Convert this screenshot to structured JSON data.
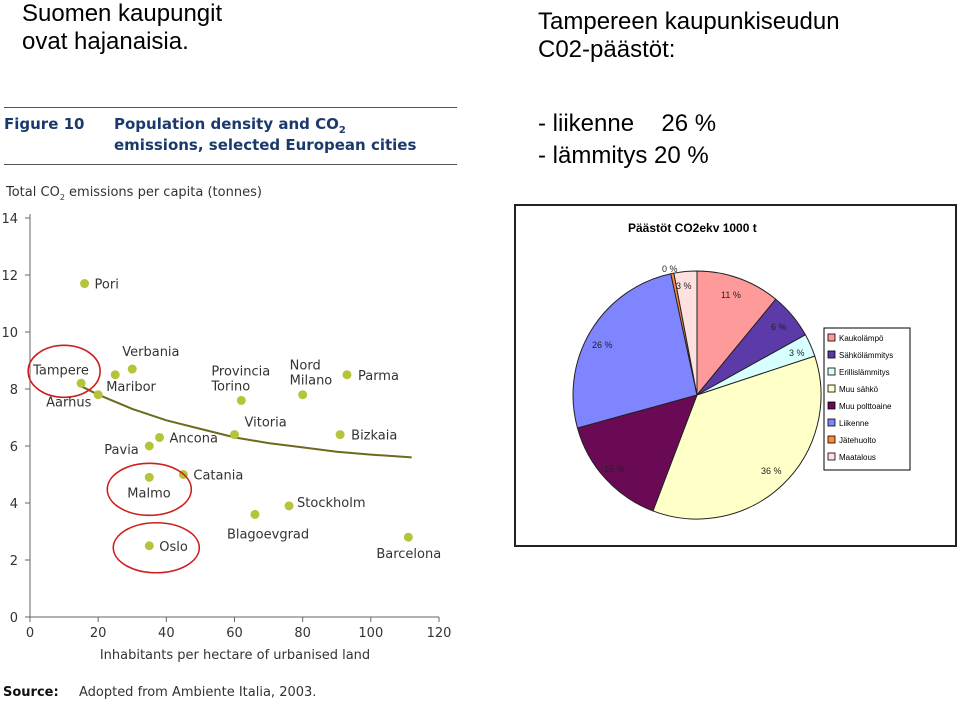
{
  "heading_left": {
    "line1": "Suomen kaupungit",
    "line2": "ovat hajanaisia."
  },
  "heading_right": {
    "line1": "Tampereen kaupunkiseudun",
    "line2": "C02-päästöt:"
  },
  "bullets": [
    {
      "text": "- liikenne",
      "value": "26 %"
    },
    {
      "text": "- lämmitys 20 %"
    }
  ],
  "figure": {
    "label": "Figure 10",
    "title_line1": "Population density and CO",
    "title_sub": "2",
    "title_line2": "emissions, selected European cities"
  },
  "source": {
    "label": "Source:",
    "text": "Adopted from Ambiente Italia, 2003."
  },
  "colors": {
    "dot": "#b5c43a",
    "trend": "#6b6a1e",
    "circle": "#cc1f1f",
    "figure_title": "#1b3a6b"
  },
  "chart_data": [
    {
      "type": "scatter",
      "title": "",
      "ylabel_parts": [
        "Total CO",
        "2",
        " emissions per capita (tonnes)"
      ],
      "xlabel": "Inhabitants per hectare of urbanised land",
      "xlim": [
        0,
        120
      ],
      "ylim": [
        0,
        14
      ],
      "xticks": [
        "0",
        "20",
        "40",
        "60",
        "80",
        "100",
        "120"
      ],
      "yticks": [
        "0",
        "2",
        "4",
        "6",
        "8",
        "10",
        "12",
        "14"
      ],
      "grid": false,
      "points": [
        {
          "label": "Pori",
          "x": 16,
          "y": 11.7
        },
        {
          "label": "Tampere",
          "x": 15,
          "y": 8.2,
          "circled": true
        },
        {
          "label": "Aarhus",
          "x": 20,
          "y": 7.8
        },
        {
          "label": "Verbania",
          "x": 30,
          "y": 8.7
        },
        {
          "label": "Maribor",
          "x": 25,
          "y": 8.5
        },
        {
          "label": "Provincia Torino",
          "x": 62,
          "y": 7.6
        },
        {
          "label": "Nord Milano",
          "x": 80,
          "y": 7.8
        },
        {
          "label": "Parma",
          "x": 93,
          "y": 8.5
        },
        {
          "label": "Vitoria",
          "x": 60,
          "y": 6.4
        },
        {
          "label": "Bizkaia",
          "x": 91,
          "y": 6.4
        },
        {
          "label": "Ancona",
          "x": 38,
          "y": 6.3
        },
        {
          "label": "Pavia",
          "x": 35,
          "y": 6.0
        },
        {
          "label": "Catania",
          "x": 45,
          "y": 5.0
        },
        {
          "label": "Malmo",
          "x": 35,
          "y": 4.9,
          "circled": true
        },
        {
          "label": "Stockholm",
          "x": 76,
          "y": 3.9
        },
        {
          "label": "Blagoevgrad",
          "x": 66,
          "y": 3.6
        },
        {
          "label": "Oslo",
          "x": 35,
          "y": 2.5,
          "circled": true
        },
        {
          "label": "Barcelona",
          "x": 111,
          "y": 2.8
        }
      ],
      "trendline": {
        "x": [
          15,
          20,
          30,
          40,
          50,
          60,
          70,
          80,
          90,
          100,
          112
        ],
        "y": [
          8.1,
          7.8,
          7.3,
          6.9,
          6.6,
          6.3,
          6.1,
          5.95,
          5.8,
          5.7,
          5.6
        ]
      }
    },
    {
      "type": "pie",
      "title": "Päästöt CO2ekv 1000 t",
      "legend_position": "right",
      "slices": [
        {
          "name": "Kaukolämpö",
          "value": 11,
          "label": "11 %",
          "color": "#ff9a9a"
        },
        {
          "name": "Sähkölämmitys",
          "value": 6,
          "label": "6 %",
          "color": "#5c3aa8"
        },
        {
          "name": "Erillislämmitys",
          "value": 3,
          "label": "3 %",
          "color": "#d8ffff"
        },
        {
          "name": "Muu sähkö",
          "value": 36,
          "label": "36 %",
          "color": "#ffffc8"
        },
        {
          "name": "Muu polttoaine",
          "value": 15,
          "label": "15 %",
          "color": "#6a0a54"
        },
        {
          "name": "Liikenne",
          "value": 26,
          "label": "26 %",
          "color": "#7f84ff"
        },
        {
          "name": "Jätehuolto",
          "value": 0.4,
          "label": "0 %",
          "color": "#ff8a3a"
        },
        {
          "name": "Maatalous",
          "value": 3,
          "label": "3 %",
          "color": "#ffe0e0"
        }
      ]
    }
  ]
}
